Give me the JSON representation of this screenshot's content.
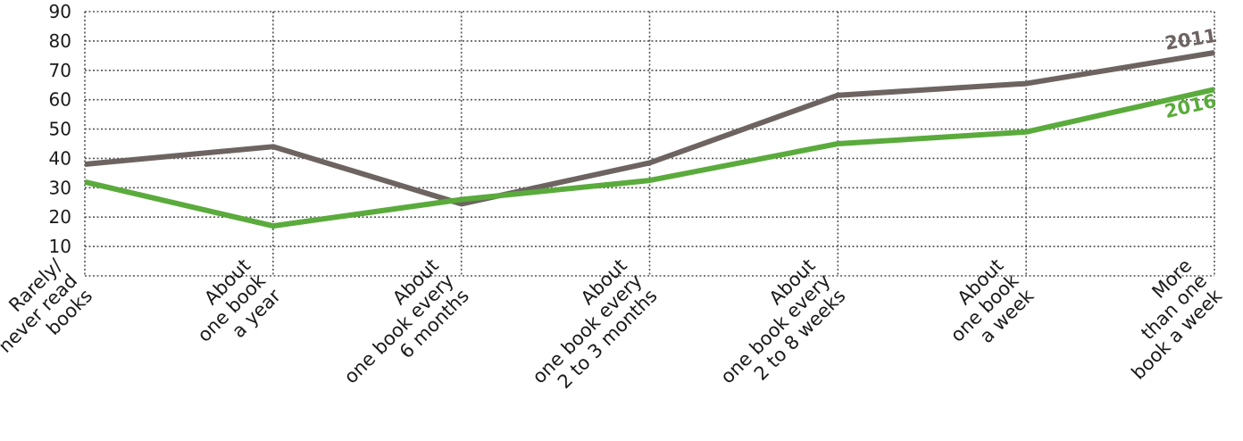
{
  "chart_data": {
    "type": "line",
    "categories": [
      [
        "Rarely/",
        "never read",
        "books"
      ],
      [
        "About",
        "one book",
        "a year"
      ],
      [
        "About",
        "one book every",
        "6 months"
      ],
      [
        "About",
        "one book every",
        "2 to 3 months"
      ],
      [
        "About",
        "one book every",
        "2 to 8 weeks"
      ],
      [
        "About",
        "one book",
        "a week"
      ],
      [
        "More",
        "than one",
        "book a week"
      ]
    ],
    "series": [
      {
        "name": "2011",
        "color": "#6d6461",
        "values": [
          38,
          44,
          24.5,
          38.5,
          61.5,
          65.5,
          76
        ]
      },
      {
        "name": "2016",
        "color": "#5aab3c",
        "values": [
          32,
          17,
          26,
          32.5,
          45,
          49,
          63.5
        ]
      }
    ],
    "yticks": [
      10,
      20,
      30,
      40,
      50,
      60,
      70,
      80,
      90
    ],
    "ylim": [
      0,
      90
    ],
    "grid": true,
    "grid_color": "#555555",
    "title": "",
    "xlabel": "",
    "ylabel": ""
  }
}
